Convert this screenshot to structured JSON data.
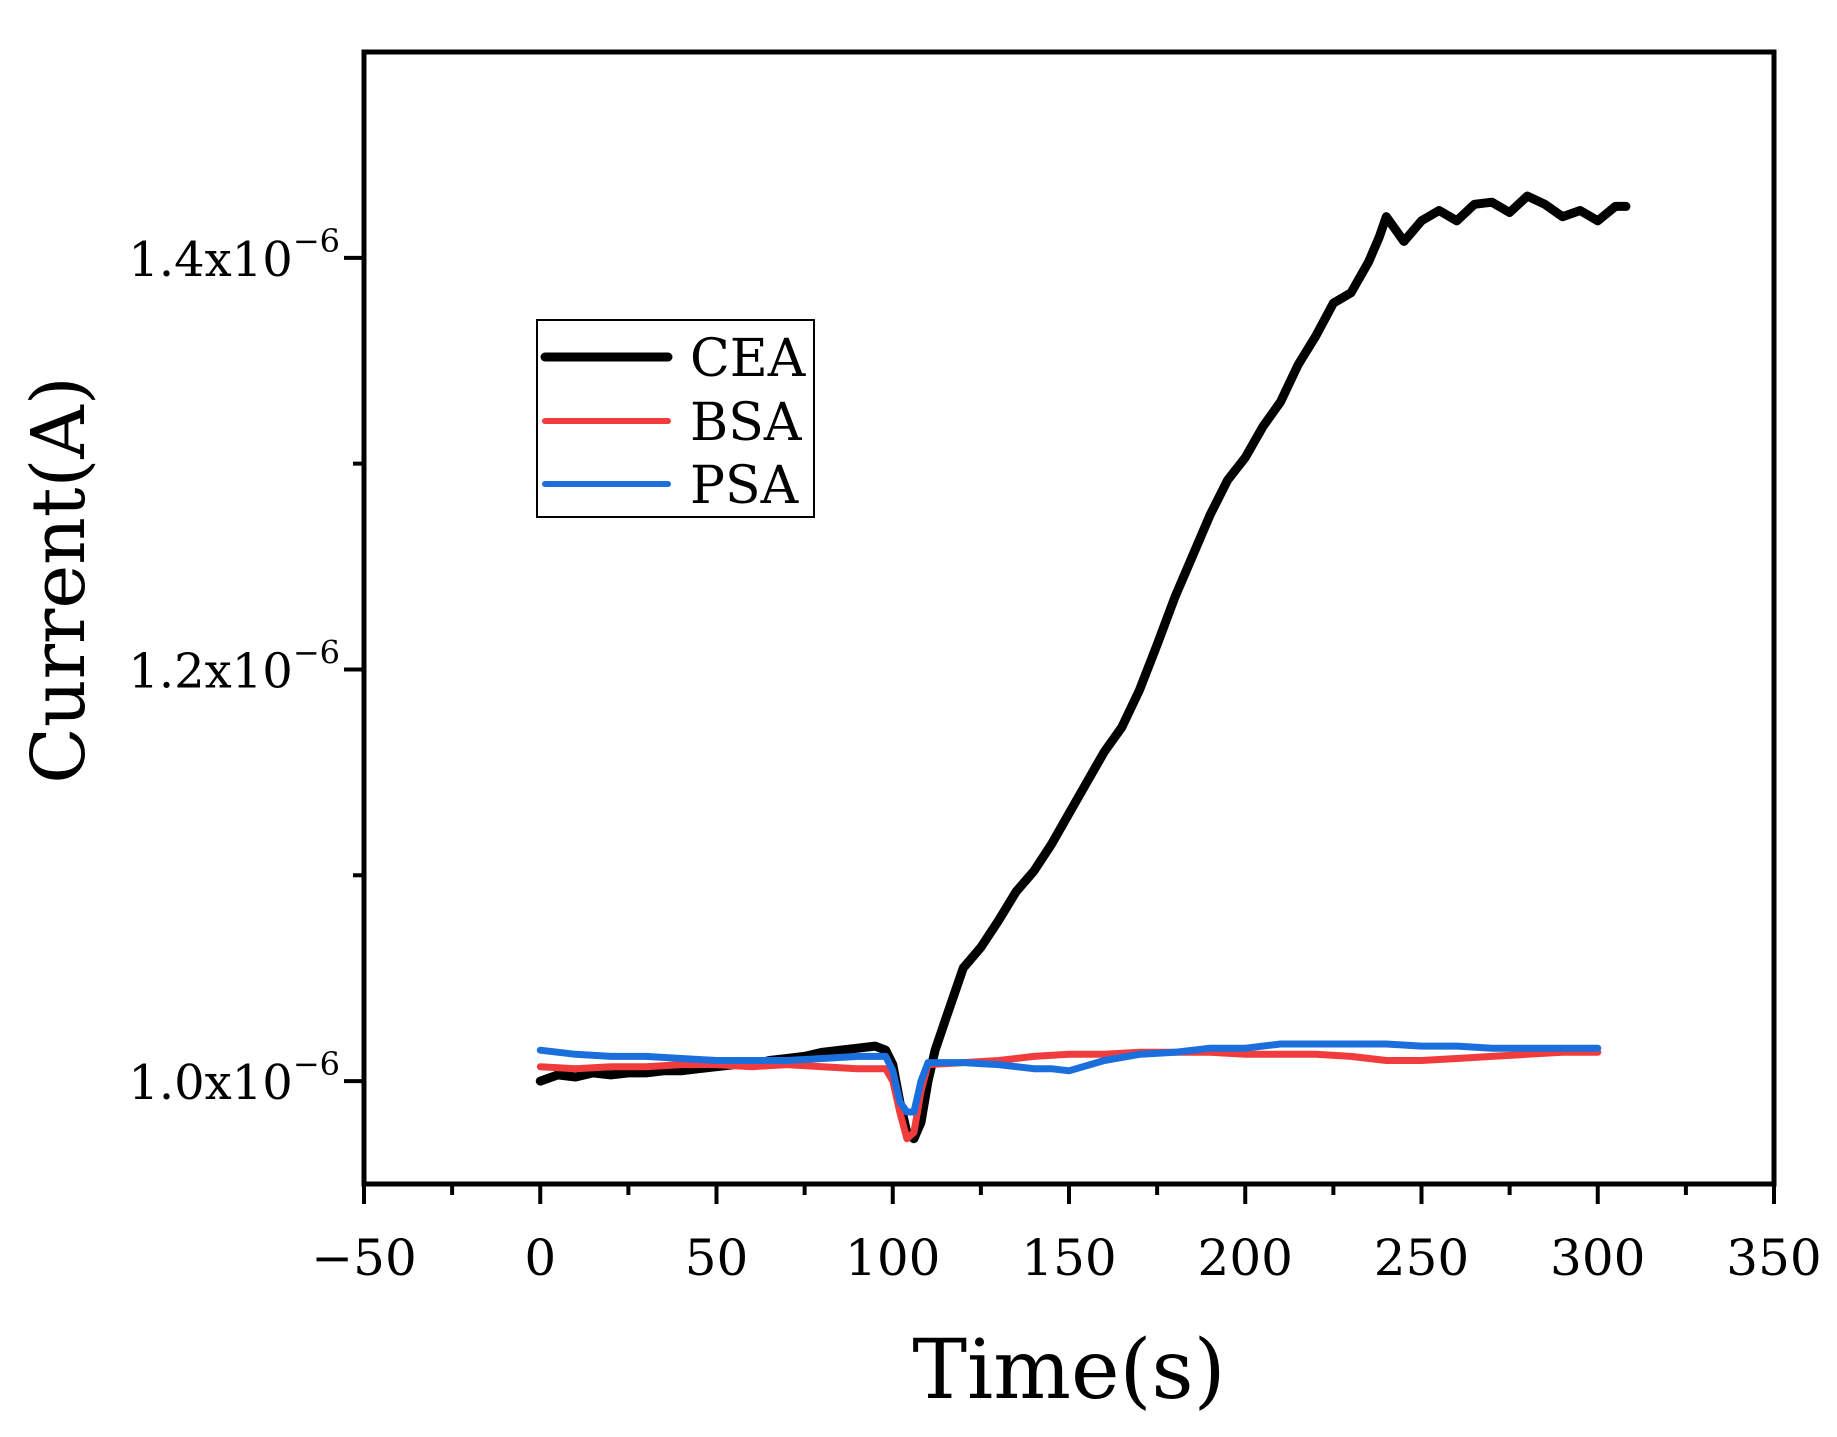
{
  "chart_data": {
    "type": "line",
    "title": "",
    "xlabel": "Time(s)",
    "ylabel": "Current(A)",
    "xlim": [
      -50,
      350
    ],
    "ylim": [
      9.5e-07,
      1.5e-06
    ],
    "x_ticks": [
      -50,
      0,
      50,
      100,
      150,
      200,
      250,
      300,
      350
    ],
    "x_tick_labels": [
      "−50",
      "0",
      "50",
      "100",
      "150",
      "200",
      "250",
      "300",
      "350"
    ],
    "y_ticks": [
      1e-06,
      1.2e-06,
      1.4e-06
    ],
    "y_tick_labels": [
      {
        "mantissa": "1.0x10",
        "exponent": "−6"
      },
      {
        "mantissa": "1.2x10",
        "exponent": "−6"
      },
      {
        "mantissa": "1.4x10",
        "exponent": "−6"
      }
    ],
    "grid": false,
    "legend_position": "upper-left",
    "series": [
      {
        "name": "CEA",
        "color": "#000000",
        "x": [
          0,
          5,
          10,
          15,
          20,
          25,
          30,
          35,
          40,
          45,
          50,
          55,
          60,
          65,
          70,
          75,
          80,
          85,
          90,
          95,
          98,
          100,
          102,
          104,
          106,
          108,
          110,
          112,
          115,
          118,
          120,
          125,
          130,
          135,
          140,
          145,
          150,
          155,
          160,
          165,
          170,
          175,
          180,
          185,
          190,
          195,
          200,
          205,
          210,
          215,
          220,
          225,
          230,
          235,
          238,
          240,
          245,
          250,
          255,
          260,
          265,
          270,
          275,
          280,
          285,
          290,
          295,
          300,
          305,
          308
        ],
        "y": [
          1e-06,
          1.003e-06,
          1.002e-06,
          1.004e-06,
          1.003e-06,
          1.004e-06,
          1.004e-06,
          1.005e-06,
          1.005e-06,
          1.006e-06,
          1.007e-06,
          1.008e-06,
          1.008e-06,
          1.01e-06,
          1.011e-06,
          1.012e-06,
          1.014e-06,
          1.015e-06,
          1.016e-06,
          1.017e-06,
          1.015e-06,
          1.008e-06,
          9.9e-07,
          9.75e-07,
          9.72e-07,
          9.8e-07,
          1e-06,
          1.015e-06,
          1.03e-06,
          1.045e-06,
          1.055e-06,
          1.065e-06,
          1.078e-06,
          1.092e-06,
          1.102e-06,
          1.115e-06,
          1.13e-06,
          1.145e-06,
          1.16e-06,
          1.172e-06,
          1.19e-06,
          1.212e-06,
          1.235e-06,
          1.255e-06,
          1.275e-06,
          1.292e-06,
          1.303e-06,
          1.318e-06,
          1.33e-06,
          1.348e-06,
          1.362e-06,
          1.378e-06,
          1.383e-06,
          1.398e-06,
          1.41e-06,
          1.42e-06,
          1.408e-06,
          1.418e-06,
          1.423e-06,
          1.418e-06,
          1.426e-06,
          1.427e-06,
          1.422e-06,
          1.43e-06,
          1.426e-06,
          1.42e-06,
          1.423e-06,
          1.418e-06,
          1.425e-06,
          1.425e-06
        ]
      },
      {
        "name": "BSA",
        "color": "#f03c3c",
        "x": [
          0,
          10,
          20,
          30,
          40,
          50,
          60,
          70,
          80,
          90,
          98,
          100,
          102,
          104,
          106,
          108,
          110,
          120,
          130,
          140,
          150,
          160,
          170,
          180,
          190,
          200,
          210,
          220,
          230,
          240,
          250,
          260,
          270,
          280,
          290,
          300
        ],
        "y": [
          1.007e-06,
          1.006e-06,
          1.007e-06,
          1.007e-06,
          1.008e-06,
          1.008e-06,
          1.007e-06,
          1.008e-06,
          1.007e-06,
          1.006e-06,
          1.006e-06,
          1e-06,
          9.85e-07,
          9.72e-07,
          9.75e-07,
          9.95e-07,
          1.008e-06,
          1.009e-06,
          1.01e-06,
          1.012e-06,
          1.013e-06,
          1.013e-06,
          1.014e-06,
          1.014e-06,
          1.014e-06,
          1.013e-06,
          1.013e-06,
          1.013e-06,
          1.012e-06,
          1.01e-06,
          1.01e-06,
          1.011e-06,
          1.012e-06,
          1.013e-06,
          1.014e-06,
          1.014e-06
        ]
      },
      {
        "name": "PSA",
        "color": "#1a6fdc",
        "x": [
          0,
          10,
          20,
          30,
          40,
          50,
          60,
          70,
          80,
          90,
          98,
          100,
          102,
          104,
          106,
          108,
          110,
          120,
          130,
          140,
          145,
          150,
          160,
          170,
          180,
          190,
          200,
          210,
          220,
          230,
          240,
          250,
          260,
          270,
          280,
          290,
          300
        ],
        "y": [
          1.015e-06,
          1.013e-06,
          1.012e-06,
          1.012e-06,
          1.011e-06,
          1.01e-06,
          1.01e-06,
          1.01e-06,
          1.011e-06,
          1.012e-06,
          1.012e-06,
          1.005e-06,
          9.9e-07,
          9.85e-07,
          9.85e-07,
          1e-06,
          1.009e-06,
          1.009e-06,
          1.008e-06,
          1.006e-06,
          1.006e-06,
          1.005e-06,
          1.01e-06,
          1.013e-06,
          1.014e-06,
          1.016e-06,
          1.016e-06,
          1.018e-06,
          1.018e-06,
          1.018e-06,
          1.018e-06,
          1.017e-06,
          1.017e-06,
          1.016e-06,
          1.016e-06,
          1.016e-06,
          1.016e-06
        ]
      }
    ]
  }
}
